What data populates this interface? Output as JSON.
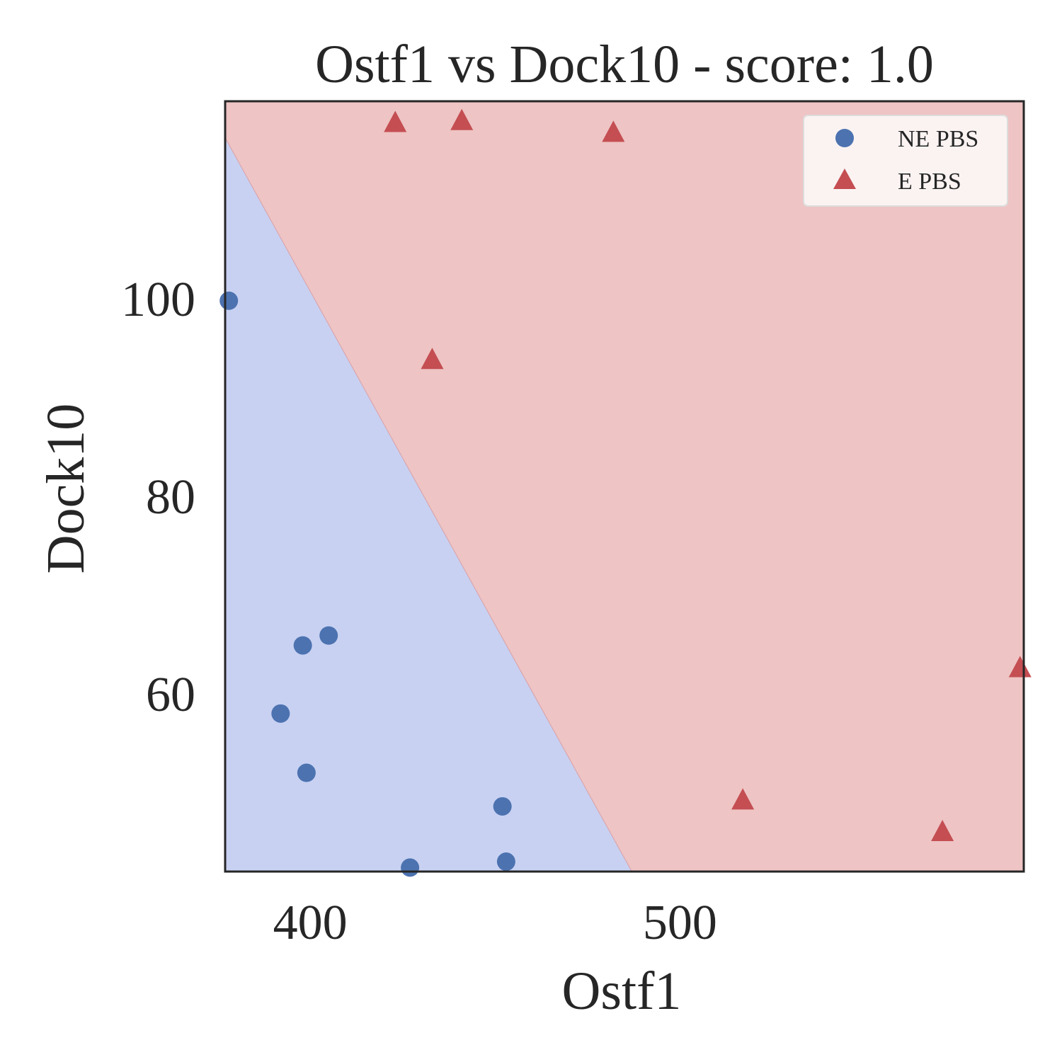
{
  "chart_data": {
    "type": "scatter",
    "title": "Ostf1 vs Dock10 - score: 1.0",
    "xlabel": "Ostf1",
    "ylabel": "Dock10",
    "xlim": [
      377,
      593
    ],
    "ylim": [
      42.0,
      120.0
    ],
    "xticks": [
      400,
      500
    ],
    "yticks": [
      60,
      80,
      100
    ],
    "grid": false,
    "legend_position": "top-right",
    "decision_boundary": {
      "description_points": [
        [
          377,
          116.3
        ],
        [
          487,
          42.0
        ]
      ],
      "regions": [
        {
          "name": "NE PBS",
          "color": "#c8d1f2"
        },
        {
          "name": "E PBS",
          "color": "#eec4c4"
        }
      ]
    },
    "series": [
      {
        "name": "NE PBS",
        "marker": "circle",
        "color": "#4c72b0",
        "points": [
          {
            "x": 378,
            "y": 99.8
          },
          {
            "x": 398,
            "y": 64.9
          },
          {
            "x": 405,
            "y": 65.9
          },
          {
            "x": 392,
            "y": 58.0
          },
          {
            "x": 399,
            "y": 52.0
          },
          {
            "x": 452,
            "y": 48.6
          },
          {
            "x": 453,
            "y": 43.0
          },
          {
            "x": 427,
            "y": 42.4
          }
        ]
      },
      {
        "name": "E PBS",
        "marker": "triangle",
        "color": "#c44e52",
        "points": [
          {
            "x": 423,
            "y": 117.7
          },
          {
            "x": 441,
            "y": 117.9
          },
          {
            "x": 482,
            "y": 116.7
          },
          {
            "x": 433,
            "y": 93.7
          },
          {
            "x": 517,
            "y": 49.1
          },
          {
            "x": 571,
            "y": 45.9
          },
          {
            "x": 592,
            "y": 62.5
          }
        ]
      }
    ]
  }
}
